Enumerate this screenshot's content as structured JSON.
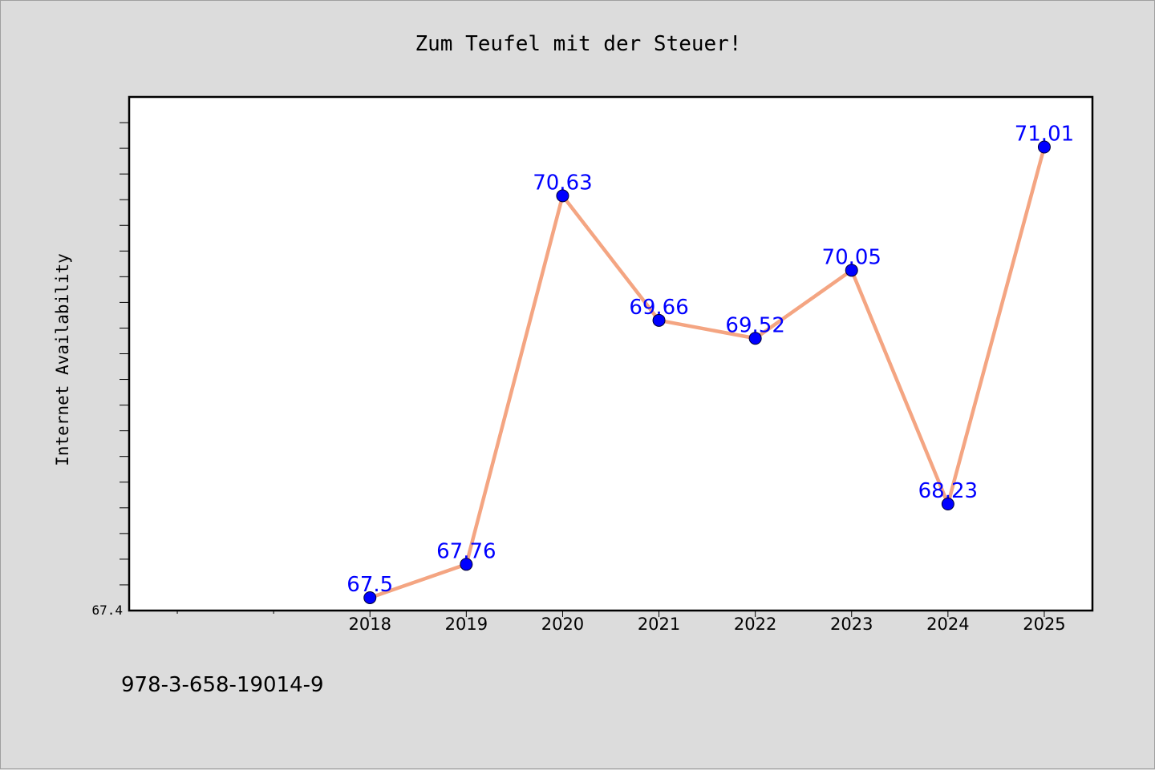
{
  "colors": {
    "background": "#dcdcdc",
    "plot_background": "#ffffff",
    "line": "#f4a582",
    "marker": "#0000ff",
    "label": "#0000ff"
  },
  "footer": {
    "isbn": "978-3-658-19014-9"
  },
  "chart_data": {
    "type": "line",
    "title": "Zum Teufel mit der Steuer!",
    "xlabel": "",
    "ylabel": "Internet Availability",
    "x": [
      "2018",
      "2019",
      "2020",
      "2021",
      "2022",
      "2023",
      "2024",
      "2025"
    ],
    "values": [
      67.5,
      67.76,
      70.63,
      69.66,
      69.52,
      70.05,
      68.23,
      71.01
    ],
    "data_labels": [
      "67.5",
      "67.76",
      "70.63",
      "69.66",
      "69.52",
      "70.05",
      "68.23",
      "71.01"
    ],
    "ylim": [
      67.4,
      71.4
    ],
    "ymin_label": "67.4",
    "xlim": [
      2015.5,
      2025.5
    ],
    "grid": false,
    "markers": "circle"
  }
}
